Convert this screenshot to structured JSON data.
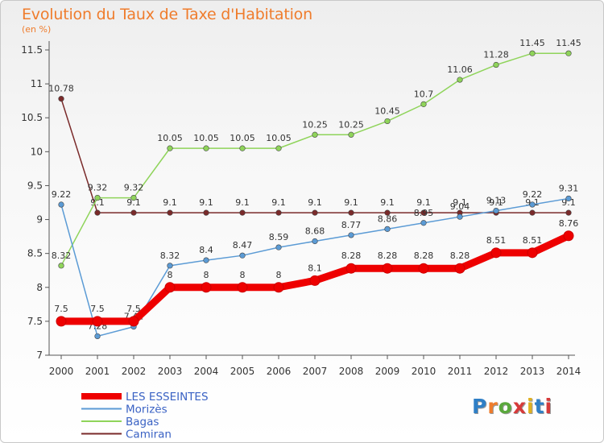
{
  "header": {
    "title": "Evolution du Taux de Taxe d'Habitation",
    "subtitle": "(en %)"
  },
  "logo": {
    "text": "Proxiti",
    "letter_colors": [
      "#2f7fc6",
      "#ef7c2c",
      "#5aa83c",
      "#d63a3a",
      "#e0b020",
      "#2f7fc6",
      "#d63a3a"
    ]
  },
  "chart_data": {
    "type": "line",
    "x": [
      2000,
      2001,
      2002,
      2003,
      2004,
      2005,
      2006,
      2007,
      2008,
      2009,
      2010,
      2011,
      2012,
      2013,
      2014
    ],
    "y_ticks": [
      "7",
      "7.5",
      "8",
      "8.5",
      "9",
      "9.5",
      "10",
      "10.5",
      "11",
      "11.5"
    ],
    "ylim": [
      7,
      11.5
    ],
    "grid": false,
    "legend_position": "bottom-left",
    "series": [
      {
        "name": "LES ESSEINTES",
        "color": "#ee0000",
        "values": [
          7.5,
          7.5,
          7.5,
          8,
          8,
          8,
          8,
          8.1,
          8.28,
          8.28,
          8.28,
          8.28,
          8.51,
          8.51,
          8.76
        ],
        "labels": [
          "7.5",
          "7.5",
          "7.5",
          "8",
          "8",
          "8",
          "8",
          "8.1",
          "8.28",
          "8.28",
          "8.28",
          "8.28",
          "8.51",
          "8.51",
          "8.76"
        ]
      },
      {
        "name": "Morizès",
        "color": "#5b9bd5",
        "values": [
          9.22,
          7.28,
          7.42,
          8.32,
          8.4,
          8.47,
          8.59,
          8.68,
          8.77,
          8.86,
          8.95,
          9.04,
          9.13,
          9.22,
          9.31
        ],
        "labels": [
          "9.22",
          "7.28",
          "7.42",
          "8.32",
          "8.4",
          "8.47",
          "8.59",
          "8.68",
          "8.77",
          "8.86",
          "8.95",
          "9.04",
          "9.13",
          "9.22",
          "9.31"
        ]
      },
      {
        "name": "Bagas",
        "color": "#8fd45a",
        "values": [
          8.32,
          9.32,
          9.32,
          10.05,
          10.05,
          10.05,
          10.05,
          10.25,
          10.25,
          10.45,
          10.7,
          11.06,
          11.28,
          11.45,
          11.45
        ],
        "labels": [
          "8.32",
          "9.32",
          "9.32",
          "10.05",
          "10.05",
          "10.05",
          "10.05",
          "10.25",
          "10.25",
          "10.45",
          "10.7",
          "11.06",
          "11.28",
          "11.45",
          "11.45"
        ]
      },
      {
        "name": "Camiran",
        "color": "#7a2a2a",
        "values": [
          10.78,
          9.1,
          9.1,
          9.1,
          9.1,
          9.1,
          9.1,
          9.1,
          9.1,
          9.1,
          9.1,
          9.1,
          9.1,
          9.1,
          9.1
        ],
        "labels": [
          "10.78",
          "9.1",
          "9.1",
          "9.1",
          "9.1",
          "9.1",
          "9.1",
          "9.1",
          "9.1",
          "9.1",
          "9.1",
          "9.1",
          "9.1",
          "9.1",
          "9.1"
        ]
      }
    ]
  }
}
